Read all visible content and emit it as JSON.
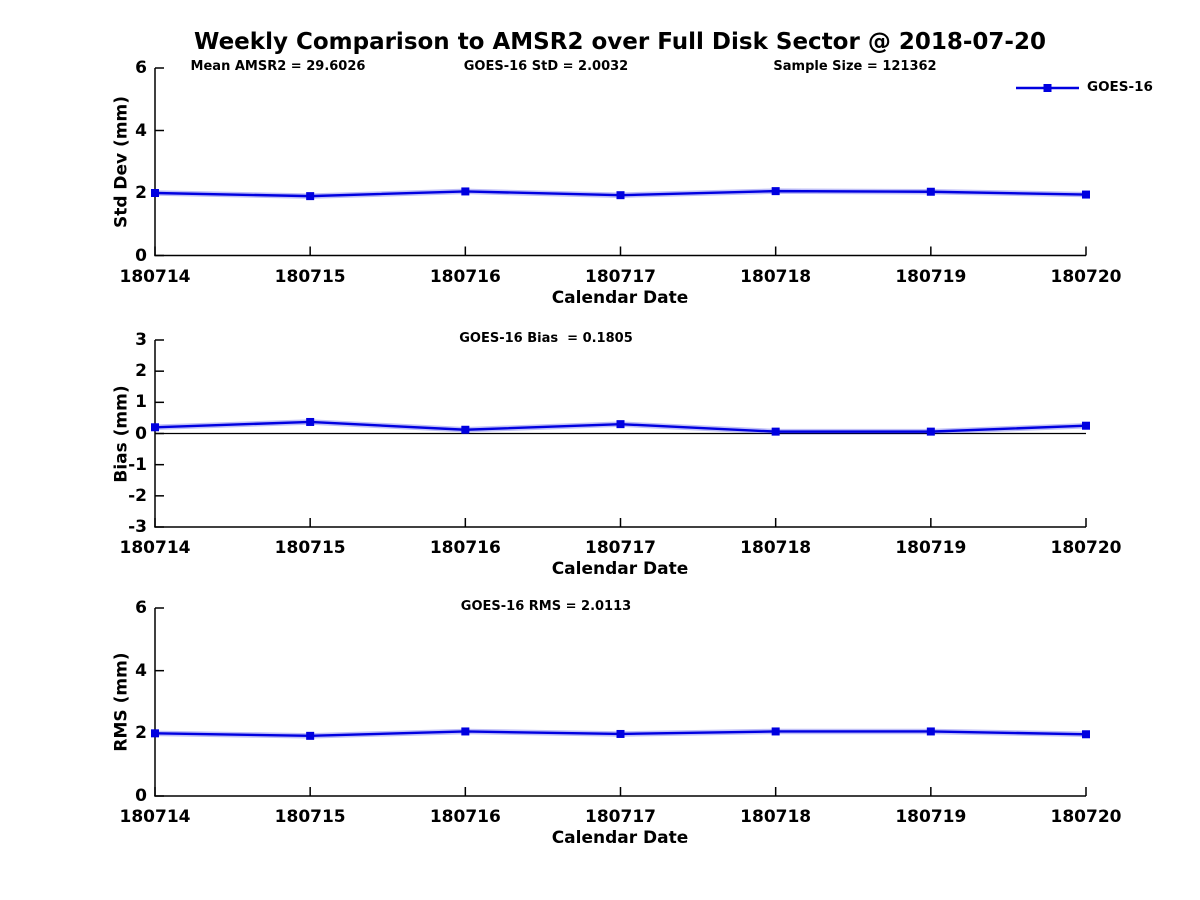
{
  "title": "Weekly Comparison to AMSR2 over Full Disk Sector @ 2018-07-20",
  "figure": {
    "background": "#ffffff",
    "accent_blue": "#0000e0",
    "axis_color": "#000000"
  },
  "legend": {
    "label": "GOES-16",
    "marker": "filled-square",
    "position": "top-right"
  },
  "chart_data": [
    {
      "type": "line",
      "panel": "std-dev",
      "annotations": [
        "Mean AMSR2 = 29.6026",
        "GOES-16 StD = 2.0032",
        "Sample Size = 121362"
      ],
      "ylabel": "Std Dev (mm)",
      "xlabel": "Calendar Date",
      "categories": [
        "180714",
        "180715",
        "180716",
        "180717",
        "180718",
        "180719",
        "180720"
      ],
      "ylim": [
        0,
        6
      ],
      "yticks": [
        6,
        4,
        2,
        0
      ],
      "grid": false,
      "zero_line": false,
      "legend_position": "top-right",
      "series": [
        {
          "name": "GOES-16",
          "color": "#0000e0",
          "marker": "square",
          "values": [
            2.0,
            1.9,
            2.05,
            1.93,
            2.06,
            2.04,
            1.95
          ]
        }
      ]
    },
    {
      "type": "line",
      "panel": "bias",
      "annotations": [
        "GOES-16 Bias  = 0.1805"
      ],
      "ylabel": "Bias (mm)",
      "xlabel": "Calendar Date",
      "categories": [
        "180714",
        "180715",
        "180716",
        "180717",
        "180718",
        "180719",
        "180720"
      ],
      "ylim": [
        -3,
        3
      ],
      "yticks": [
        3,
        2,
        1,
        0,
        -1,
        -2,
        -3
      ],
      "grid": false,
      "zero_line": true,
      "series": [
        {
          "name": "GOES-16",
          "color": "#0000e0",
          "marker": "square",
          "values": [
            0.2,
            0.37,
            0.12,
            0.3,
            0.06,
            0.06,
            0.25
          ]
        }
      ]
    },
    {
      "type": "line",
      "panel": "rms",
      "annotations": [
        "GOES-16 RMS = 2.0113"
      ],
      "ylabel": "RMS (mm)",
      "xlabel": "Calendar Date",
      "categories": [
        "180714",
        "180715",
        "180716",
        "180717",
        "180718",
        "180719",
        "180720"
      ],
      "ylim": [
        0,
        6
      ],
      "yticks": [
        6,
        4,
        2,
        0
      ],
      "grid": false,
      "zero_line": false,
      "series": [
        {
          "name": "GOES-16",
          "color": "#0000e0",
          "marker": "square",
          "values": [
            2.0,
            1.92,
            2.06,
            1.98,
            2.06,
            2.06,
            1.97
          ]
        }
      ]
    }
  ]
}
